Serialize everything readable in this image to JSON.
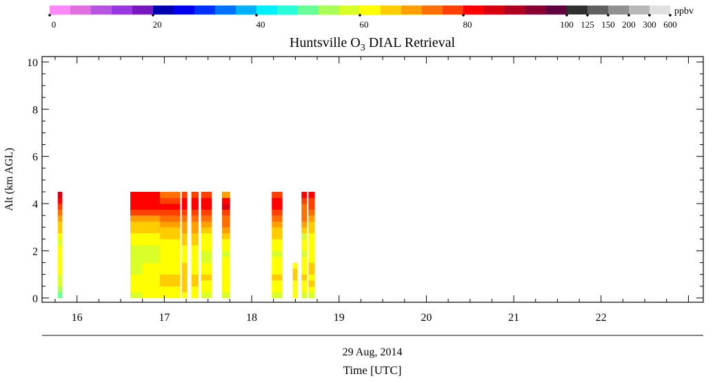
{
  "chart_data": {
    "type": "heatmap",
    "title": "Huntsville O",
    "title_subscript": "3",
    "title_suffix": " DIAL Retrieval",
    "xlabel": "Time [UTC]",
    "date_label": "29 Aug, 2014",
    "ylabel": "Alt (km AGL)",
    "xlim": [
      15.6,
      23.17
    ],
    "ylim": [
      -0.18,
      10.23
    ],
    "x_ticks": [
      16,
      17,
      18,
      19,
      20,
      21,
      22
    ],
    "y_ticks": [
      0,
      2,
      4,
      6,
      8,
      10
    ],
    "colorbar": {
      "unit": "ppbv",
      "bounds": [
        0,
        4,
        8,
        12,
        16,
        20,
        24,
        28,
        32,
        36,
        40,
        44,
        48,
        52,
        56,
        60,
        64,
        68,
        72,
        76,
        80,
        84,
        88,
        92,
        96,
        100,
        125,
        150,
        200,
        300,
        600
      ],
      "colors": [
        "#ff88f8",
        "#e070e0",
        "#b855e0",
        "#9838e0",
        "#7818c0",
        "#0000b0",
        "#0000f0",
        "#0030ff",
        "#0070ff",
        "#00b0ff",
        "#00f0ff",
        "#28ffd8",
        "#68ff98",
        "#a8ff58",
        "#d8ff28",
        "#ffff00",
        "#ffcc00",
        "#ffa000",
        "#ff7000",
        "#ff4000",
        "#ff0000",
        "#d80010",
        "#b00020",
        "#880030",
        "#600040",
        "#303030",
        "#606060",
        "#909090",
        "#b8b8b8",
        "#e0e0e0"
      ],
      "tick_labels": [
        "0",
        "20",
        "40",
        "60",
        "80",
        "100",
        "125",
        "150",
        "200",
        "300",
        "600"
      ]
    },
    "altitude_step_km": 0.25,
    "segments": [
      {
        "t": [
          15.78,
          15.83
        ],
        "profile": [
          50,
          54,
          56,
          58,
          61,
          60,
          62,
          60,
          62,
          59,
          63,
          64,
          66,
          70,
          74,
          78,
          81,
          86
        ]
      },
      {
        "t": [
          16.61,
          16.75
        ],
        "profile": [
          57,
          60,
          61,
          60,
          59,
          57,
          57,
          56,
          58,
          62,
          62,
          64,
          66,
          70,
          76,
          81,
          82,
          80
        ]
      },
      {
        "t": [
          16.75,
          16.95
        ],
        "profile": [
          60,
          61,
          62,
          62,
          61,
          60,
          58,
          58,
          59,
          61,
          63,
          65,
          67,
          71,
          77,
          81,
          82,
          81
        ]
      },
      {
        "t": [
          16.95,
          17.18
        ],
        "profile": [
          61,
          62,
          64,
          64,
          63,
          61,
          61,
          60,
          61,
          62,
          64,
          66,
          68,
          73,
          78,
          81,
          79,
          73
        ]
      },
      {
        "t": [
          17.2,
          17.26
        ],
        "profile": [
          60,
          64,
          64,
          64,
          64,
          64,
          61,
          60,
          60,
          64,
          64,
          68,
          70,
          72,
          76,
          82,
          80,
          77
        ]
      },
      {
        "t": [
          17.31,
          17.39
        ],
        "profile": [
          60,
          62,
          64,
          64,
          61,
          60,
          60,
          61,
          62,
          64,
          66,
          68,
          70,
          74,
          78,
          81,
          80,
          77
        ]
      },
      {
        "t": [
          17.42,
          17.54
        ],
        "profile": [
          58,
          61,
          62,
          64,
          62,
          60,
          58,
          57,
          60,
          61,
          63,
          66,
          70,
          73,
          78,
          80,
          81,
          79
        ]
      },
      {
        "t": [
          17.66,
          17.75
        ],
        "profile": [
          57,
          61,
          61,
          61,
          61,
          61,
          60,
          57,
          60,
          61,
          65,
          68,
          72,
          74,
          79,
          84,
          80,
          70
        ]
      },
      {
        "t": [
          18.23,
          18.35
        ],
        "profile": [
          58,
          60,
          63,
          64,
          60,
          60,
          61,
          59,
          60,
          62,
          65,
          66,
          68,
          74,
          78,
          82,
          81,
          79
        ]
      },
      {
        "t": [
          18.47,
          18.52
        ],
        "profile": [
          60,
          62,
          60,
          64,
          64,
          62
        ]
      },
      {
        "t": [
          18.57,
          18.63
        ],
        "profile": [
          56,
          61,
          62,
          65,
          60,
          63,
          61,
          57,
          60,
          62,
          57,
          64,
          68,
          72,
          72,
          72,
          76,
          80
        ]
      },
      {
        "t": [
          18.65,
          18.72
        ],
        "profile": [
          58,
          61,
          64,
          62,
          65,
          64,
          62,
          60,
          61,
          60,
          62,
          64,
          66,
          69,
          72,
          76,
          78,
          82
        ]
      }
    ]
  }
}
